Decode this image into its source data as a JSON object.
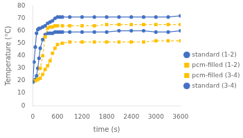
{
  "chart_data": {
    "type": "line",
    "xlabel": "time (s)",
    "ylabel": "Temperature (°C)",
    "xlim": [
      0,
      3600
    ],
    "ylim": [
      0,
      80
    ],
    "xticks": [
      0,
      600,
      1200,
      1800,
      2400,
      3000,
      3600
    ],
    "yticks": [
      0,
      10,
      20,
      30,
      40,
      50,
      60,
      70,
      80
    ],
    "grid": false,
    "legend": "right",
    "series": [
      {
        "name": "standard (1-2)",
        "color": "#4472C4",
        "line_style": "solid",
        "marker": "circle",
        "x": [
          0,
          30,
          60,
          90,
          120,
          150,
          180,
          240,
          300,
          360,
          420,
          480,
          540,
          600,
          660,
          720,
          900,
          1200,
          1500,
          1800,
          2100,
          2400,
          2700,
          3000,
          3300,
          3600
        ],
        "values": [
          19,
          35,
          47,
          58,
          61,
          62,
          62,
          63,
          64,
          66,
          67,
          68,
          70,
          71,
          71,
          71,
          71,
          71,
          71,
          71,
          71,
          71,
          71,
          71,
          71,
          72
        ]
      },
      {
        "name": "pcm-filled (1-2)",
        "color": "#FFC000",
        "line_style": "dashed",
        "marker": "square",
        "x": [
          0,
          60,
          120,
          180,
          240,
          300,
          360,
          420,
          480,
          540,
          600,
          720,
          900,
          1200,
          1500,
          1800,
          2100,
          2400,
          2700,
          3000,
          3300,
          3600
        ],
        "values": [
          19,
          20,
          21,
          30,
          40,
          55,
          62,
          63,
          63,
          64,
          64,
          64,
          64,
          64,
          64,
          65,
          65,
          65,
          65,
          65,
          65,
          65
        ]
      },
      {
        "name": "pcm-filled (3-4)",
        "color": "#FFC000",
        "line_style": "dashed",
        "marker": "square",
        "x": [
          0,
          60,
          120,
          180,
          240,
          300,
          360,
          420,
          480,
          540,
          600,
          720,
          900,
          1200,
          1500,
          1800,
          2100,
          2400,
          2700,
          3000,
          3300,
          3600
        ],
        "values": [
          20,
          20,
          21,
          22,
          25,
          29,
          32,
          36,
          42,
          46,
          49,
          50,
          51,
          51,
          51,
          51,
          51,
          51,
          51,
          52,
          52,
          52
        ]
      },
      {
        "name": "standard (3-4)",
        "color": "#4472C4",
        "line_style": "solid",
        "marker": "circle",
        "x": [
          0,
          30,
          60,
          90,
          120,
          150,
          180,
          240,
          300,
          360,
          420,
          480,
          540,
          600,
          660,
          720,
          900,
          1200,
          1500,
          1800,
          2100,
          2400,
          2700,
          3000,
          3300,
          3600
        ],
        "values": [
          19,
          20,
          21,
          24,
          30,
          38,
          46,
          53,
          57,
          58,
          58,
          58,
          59,
          59,
          59,
          59,
          59,
          59,
          59,
          59,
          60,
          60,
          60,
          59,
          59,
          60
        ]
      }
    ]
  }
}
